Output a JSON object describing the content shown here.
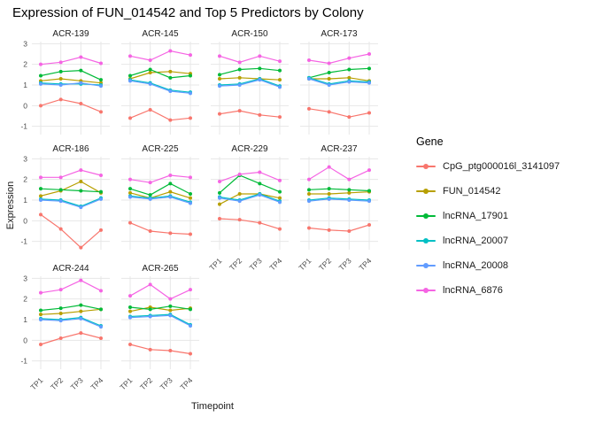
{
  "title": "Expression of FUN_014542 and Top 5 Predictors by Colony",
  "chart_data": {
    "type": "line",
    "facet_by": "Colony",
    "x": [
      "TP1",
      "TP2",
      "TP3",
      "TP4"
    ],
    "xlabel": "Timepoint",
    "ylabel": "Expression",
    "ylim": [
      -1,
      3
    ],
    "yticks": [
      3,
      2,
      1,
      0,
      -1
    ],
    "grid": true,
    "legend_title": "Gene",
    "legend_position": "right",
    "genes": [
      {
        "name": "CpG_ptg000016l_3141097",
        "color": "#F8766D"
      },
      {
        "name": "FUN_014542",
        "color": "#B79F00"
      },
      {
        "name": "lncRNA_17901",
        "color": "#00BA38"
      },
      {
        "name": "lncRNA_20007",
        "color": "#00BFC4"
      },
      {
        "name": "lncRNA_20008",
        "color": "#619CFF"
      },
      {
        "name": "lncRNA_6876",
        "color": "#F564E3"
      }
    ],
    "facets": [
      {
        "name": "ACR-139",
        "values": [
          [
            0.0,
            0.3,
            0.1,
            -0.3
          ],
          [
            1.2,
            1.3,
            1.2,
            1.1
          ],
          [
            1.45,
            1.65,
            1.7,
            1.25
          ],
          [
            1.1,
            1.05,
            1.05,
            1.0
          ],
          [
            1.05,
            1.0,
            1.1,
            0.95
          ],
          [
            2.0,
            2.1,
            2.35,
            2.05
          ]
        ]
      },
      {
        "name": "ACR-145",
        "values": [
          [
            -0.6,
            -0.2,
            -0.7,
            -0.6
          ],
          [
            1.3,
            1.6,
            1.65,
            1.55
          ],
          [
            1.45,
            1.75,
            1.35,
            1.45
          ],
          [
            1.25,
            1.1,
            0.75,
            0.65
          ],
          [
            1.2,
            1.05,
            0.7,
            0.6
          ],
          [
            2.4,
            2.2,
            2.65,
            2.45
          ]
        ]
      },
      {
        "name": "ACR-150",
        "values": [
          [
            -0.4,
            -0.25,
            -0.45,
            -0.55
          ],
          [
            1.3,
            1.35,
            1.3,
            1.25
          ],
          [
            1.5,
            1.75,
            1.8,
            1.7
          ],
          [
            1.0,
            1.05,
            1.3,
            0.95
          ],
          [
            0.95,
            1.0,
            1.25,
            0.9
          ],
          [
            2.4,
            2.1,
            2.4,
            2.15
          ]
        ]
      },
      {
        "name": "ACR-173",
        "values": [
          [
            -0.15,
            -0.3,
            -0.55,
            -0.35
          ],
          [
            1.3,
            1.3,
            1.35,
            1.2
          ],
          [
            1.35,
            1.6,
            1.75,
            1.8
          ],
          [
            1.35,
            1.05,
            1.2,
            1.15
          ],
          [
            1.3,
            1.0,
            1.15,
            1.1
          ],
          [
            2.2,
            2.05,
            2.3,
            2.5
          ]
        ]
      },
      {
        "name": "ACR-186",
        "values": [
          [
            0.3,
            -0.4,
            -1.3,
            -0.45
          ],
          [
            1.2,
            1.45,
            1.9,
            1.35
          ],
          [
            1.55,
            1.5,
            1.45,
            1.4
          ],
          [
            1.05,
            1.0,
            0.7,
            1.1
          ],
          [
            1.0,
            0.95,
            0.65,
            1.05
          ],
          [
            2.1,
            2.1,
            2.45,
            2.2
          ]
        ]
      },
      {
        "name": "ACR-225",
        "values": [
          [
            -0.1,
            -0.5,
            -0.6,
            -0.65
          ],
          [
            1.35,
            1.1,
            1.4,
            1.1
          ],
          [
            1.55,
            1.25,
            1.8,
            1.3
          ],
          [
            1.2,
            1.1,
            1.2,
            0.9
          ],
          [
            1.15,
            1.05,
            1.15,
            0.85
          ],
          [
            2.0,
            1.85,
            2.2,
            2.1
          ]
        ]
      },
      {
        "name": "ACR-229",
        "values": [
          [
            0.1,
            0.05,
            -0.1,
            -0.4
          ],
          [
            0.8,
            1.3,
            1.3,
            1.1
          ],
          [
            1.35,
            2.2,
            1.8,
            1.4
          ],
          [
            1.15,
            1.0,
            1.3,
            0.95
          ],
          [
            1.1,
            0.95,
            1.25,
            0.9
          ],
          [
            1.9,
            2.25,
            2.35,
            1.95
          ]
        ]
      },
      {
        "name": "ACR-237",
        "values": [
          [
            -0.35,
            -0.45,
            -0.5,
            -0.2
          ],
          [
            1.3,
            1.3,
            1.35,
            1.4
          ],
          [
            1.5,
            1.55,
            1.5,
            1.45
          ],
          [
            1.0,
            1.1,
            1.05,
            1.0
          ],
          [
            0.95,
            1.05,
            1.0,
            0.95
          ],
          [
            2.0,
            2.6,
            2.0,
            2.45
          ]
        ]
      },
      {
        "name": "ACR-244",
        "values": [
          [
            -0.2,
            0.1,
            0.35,
            0.1
          ],
          [
            1.25,
            1.3,
            1.4,
            1.5
          ],
          [
            1.45,
            1.55,
            1.7,
            1.5
          ],
          [
            1.05,
            1.0,
            1.1,
            0.7
          ],
          [
            1.0,
            0.95,
            1.05,
            0.65
          ],
          [
            2.3,
            2.45,
            2.9,
            2.4
          ]
        ]
      },
      {
        "name": "ACR-265",
        "values": [
          [
            -0.2,
            -0.45,
            -0.5,
            -0.65
          ],
          [
            1.4,
            1.6,
            1.45,
            1.55
          ],
          [
            1.6,
            1.5,
            1.65,
            1.5
          ],
          [
            1.15,
            1.2,
            1.25,
            0.75
          ],
          [
            1.1,
            1.15,
            1.2,
            0.7
          ],
          [
            2.15,
            2.7,
            2.0,
            2.45
          ]
        ]
      }
    ]
  }
}
